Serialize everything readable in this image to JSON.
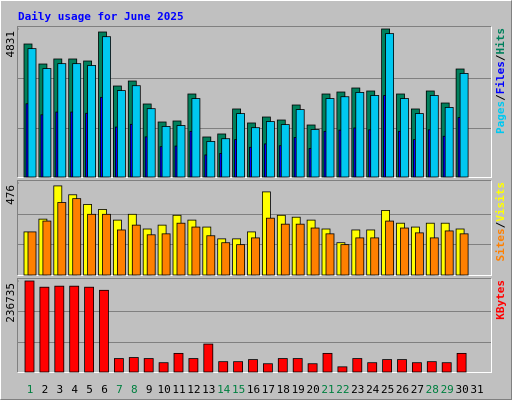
{
  "title": "Daily usage for June 2025",
  "categories": [
    "1",
    "2",
    "3",
    "4",
    "5",
    "6",
    "7",
    "8",
    "9",
    "10",
    "11",
    "12",
    "13",
    "14",
    "15",
    "16",
    "17",
    "18",
    "19",
    "20",
    "21",
    "22",
    "23",
    "24",
    "25",
    "26",
    "27",
    "28",
    "29",
    "30",
    "31"
  ],
  "category_colors": [
    "#008040",
    "#000000",
    "#000000",
    "#000000",
    "#000000",
    "#000000",
    "#008040",
    "#008040",
    "#000000",
    "#000000",
    "#000000",
    "#000000",
    "#000000",
    "#008040",
    "#008040",
    "#000000",
    "#000000",
    "#000000",
    "#000000",
    "#000000",
    "#008040",
    "#008040",
    "#000000",
    "#000000",
    "#000000",
    "#000000",
    "#000000",
    "#008040",
    "#008040",
    "#000000",
    "#000000"
  ],
  "legend_separator": "/",
  "chart_data": [
    {
      "type": "bar",
      "ylim": [
        0,
        4831
      ],
      "yticks": [
        4831
      ],
      "series": [
        {
          "name": "Hits",
          "color": "#00805c",
          "values": [
            4341,
            3688,
            3852,
            3852,
            3786,
            4733,
            2970,
            3133,
            2383,
            1795,
            1828,
            2709,
            1306,
            1404,
            2220,
            1763,
            1958,
            1860,
            2350,
            1697,
            2709,
            2774,
            2905,
            2807,
            4831,
            2709,
            2220,
            2807,
            2415,
            3525,
            0
          ]
        },
        {
          "name": "Files",
          "color": "#0000ff",
          "values": [
            2390,
            2030,
            2120,
            2120,
            2080,
            2600,
            1630,
            1720,
            1310,
            990,
            1010,
            1490,
            720,
            770,
            1220,
            970,
            1080,
            1020,
            1290,
            930,
            1490,
            1530,
            1600,
            1540,
            2660,
            1490,
            1220,
            1540,
            1330,
            1940,
            0
          ]
        },
        {
          "name": "Pages",
          "color": "#00c8f0",
          "values": [
            4190,
            3540,
            3700,
            3700,
            3640,
            4580,
            2820,
            2980,
            2230,
            1650,
            1680,
            2560,
            1160,
            1250,
            2070,
            1610,
            1810,
            1710,
            2200,
            1550,
            2560,
            2620,
            2760,
            2660,
            4680,
            2560,
            2070,
            2660,
            2270,
            3380,
            0
          ]
        }
      ]
    },
    {
      "type": "bar",
      "ylim": [
        0,
        476
      ],
      "yticks": [
        476
      ],
      "series": [
        {
          "name": "Visits",
          "color": "#ffff00",
          "values": [
            223,
            289,
            461,
            415,
            365,
            339,
            284,
            314,
            238,
            258,
            309,
            284,
            248,
            187,
            187,
            223,
            430,
            309,
            299,
            284,
            238,
            167,
            233,
            233,
            334,
            268,
            248,
            268,
            268,
            238,
            0
          ]
        },
        {
          "name": "Sites",
          "color": "#ff8000",
          "values": [
            223,
            279,
            375,
            395,
            314,
            314,
            233,
            258,
            208,
            213,
            268,
            248,
            203,
            167,
            157,
            192,
            294,
            263,
            263,
            243,
            213,
            157,
            192,
            192,
            279,
            243,
            218,
            192,
            228,
            213,
            0
          ]
        }
      ]
    },
    {
      "type": "bar",
      "ylim": [
        0,
        236735
      ],
      "yticks": [
        236735
      ],
      "series": [
        {
          "name": "KBytes",
          "color": "#ff0000",
          "values": [
            236735,
            220580,
            223270,
            223270,
            220580,
            212510,
            34970,
            37660,
            34970,
            24210,
            48420,
            34970,
            72630,
            26900,
            26900,
            32280,
            21520,
            34970,
            34970,
            21520,
            48420,
            13450,
            34970,
            24210,
            32280,
            32280,
            24210,
            26900,
            24210,
            48420,
            0
          ]
        }
      ]
    }
  ]
}
